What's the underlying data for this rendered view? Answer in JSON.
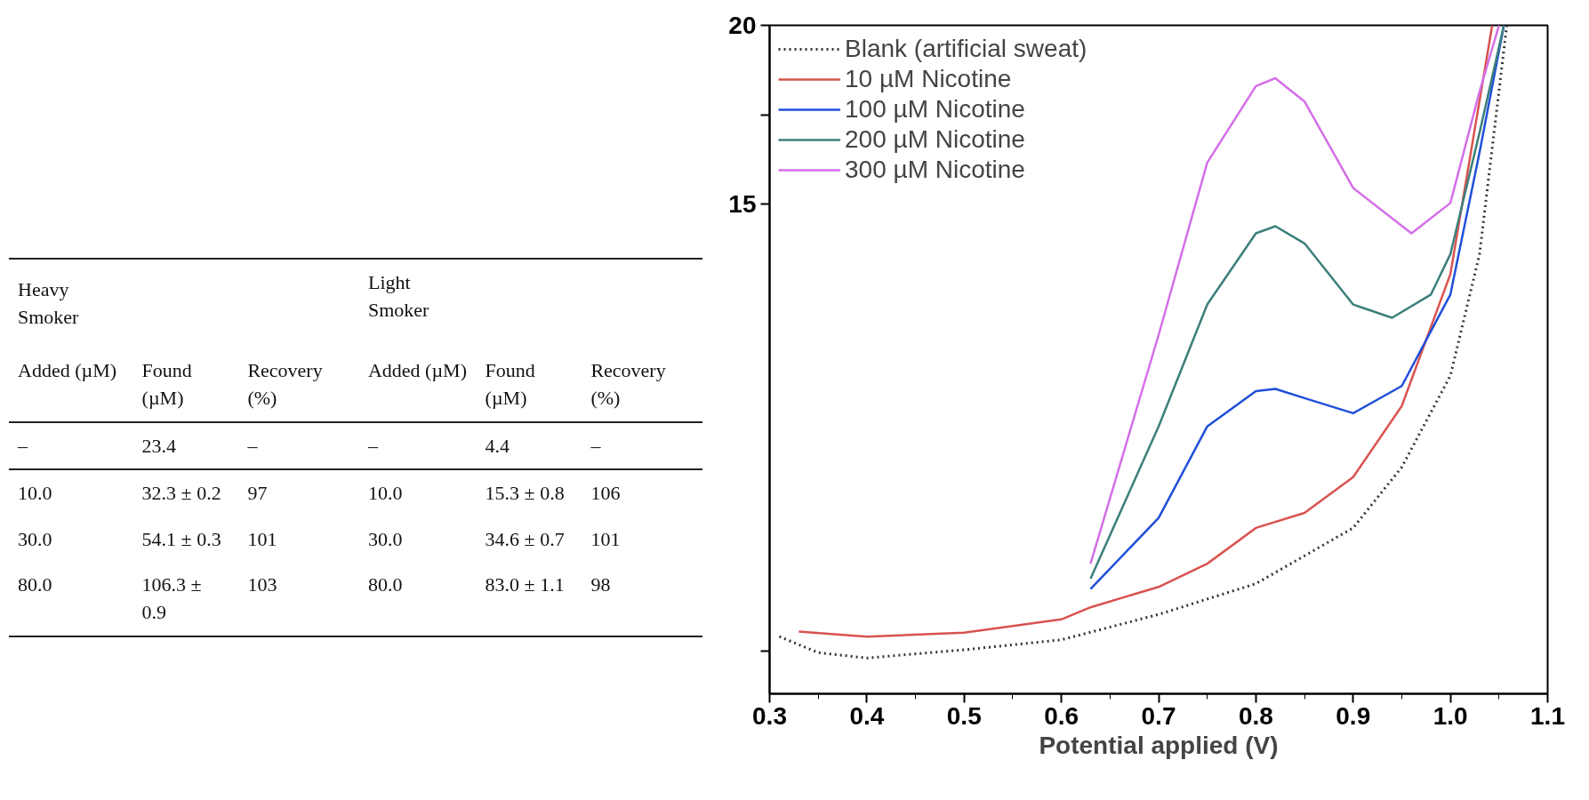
{
  "chart_data": {
    "type": "line",
    "xlabel": "Potential applied (V)",
    "xlim": [
      0.3,
      1.1
    ],
    "xticks": [
      0.3,
      0.4,
      0.5,
      0.6,
      0.7,
      0.8,
      0.9,
      {
        "value": 1,
        "label": "1.0"
      },
      1.1
    ],
    "ylim": [
      1.3,
      20
    ],
    "yticks": [
      {
        "value": 2.5,
        "label": null
      },
      15,
      {
        "value": 17.5,
        "label": null
      },
      20
    ],
    "tick_labels": "xy",
    "grid": false,
    "legend": "top left",
    "series": [
      {
        "name": "Blank (artificial sweat)",
        "color": "#333333",
        "line_style": "dotted",
        "x": [
          0.31,
          0.35,
          0.4,
          0.5,
          0.6,
          0.7,
          0.8,
          0.9,
          0.95,
          1.0,
          1.03,
          1.058
        ],
        "values": [
          2.9,
          2.45,
          2.3,
          2.53,
          2.81,
          3.52,
          4.38,
          5.94,
          7.64,
          10.2,
          13.6,
          20
        ]
      },
      {
        "name": "10 µM Nicotine",
        "color": "#d9534f",
        "line_style": "solid",
        "x": [
          0.33,
          0.4,
          0.5,
          0.6,
          0.63,
          0.7,
          0.75,
          0.8,
          0.85,
          0.9,
          0.95,
          1.0,
          1.043
        ],
        "values": [
          3.04,
          2.9,
          3.01,
          3.38,
          3.72,
          4.29,
          4.94,
          5.94,
          6.36,
          7.36,
          9.35,
          13.04,
          20
        ]
      },
      {
        "name": "100 µM Nicotine",
        "color": "#1f4fd8",
        "line_style": "solid",
        "x": [
          0.63,
          0.7,
          0.75,
          0.8,
          0.82,
          0.85,
          0.9,
          0.95,
          1.0,
          1.03,
          1.055
        ],
        "values": [
          4.23,
          6.22,
          8.78,
          9.77,
          9.83,
          9.57,
          9.15,
          9.91,
          12.47,
          16.45,
          20
        ]
      },
      {
        "name": "200 µM Nicotine",
        "color": "#3c7f7a",
        "line_style": "solid",
        "x": [
          0.63,
          0.7,
          0.75,
          0.8,
          0.82,
          0.85,
          0.9,
          0.94,
          0.98,
          1.0,
          1.03,
          1.055
        ],
        "values": [
          4.52,
          8.78,
          12.19,
          14.18,
          14.38,
          13.9,
          12.19,
          11.82,
          12.47,
          13.6,
          17.0,
          20
        ]
      },
      {
        "name": "300 µM Nicotine",
        "color": "#d46ee8",
        "line_style": "solid",
        "x": [
          0.63,
          0.7,
          0.75,
          0.8,
          0.82,
          0.85,
          0.9,
          0.96,
          1.0,
          1.03,
          1.05
        ],
        "values": [
          4.94,
          11.34,
          16.16,
          18.3,
          18.52,
          17.87,
          15.45,
          14.18,
          15.03,
          18.15,
          20
        ]
      }
    ],
    "annotations": [
      "Heavy Smoker",
      "Light Smoker",
      "Added (µM)",
      "Found (µM)",
      "Recovery (%)",
      "Added (µM)",
      "Found (µM)",
      "Recovery (%)",
      "–",
      "23.4",
      "–",
      "–",
      "4.4",
      "–",
      "10.0",
      "32.3 ± 0.2",
      "97",
      "10.0",
      "15.3 ± 0.8",
      "106",
      "30.0",
      "54.1 ± 0.3",
      "101",
      "30.0",
      "34.6 ± 0.7",
      "101",
      "80.0",
      "106.3 ± 0.9",
      "103",
      "80.0",
      "83.0 ± 1.1",
      "98"
    ]
  }
}
